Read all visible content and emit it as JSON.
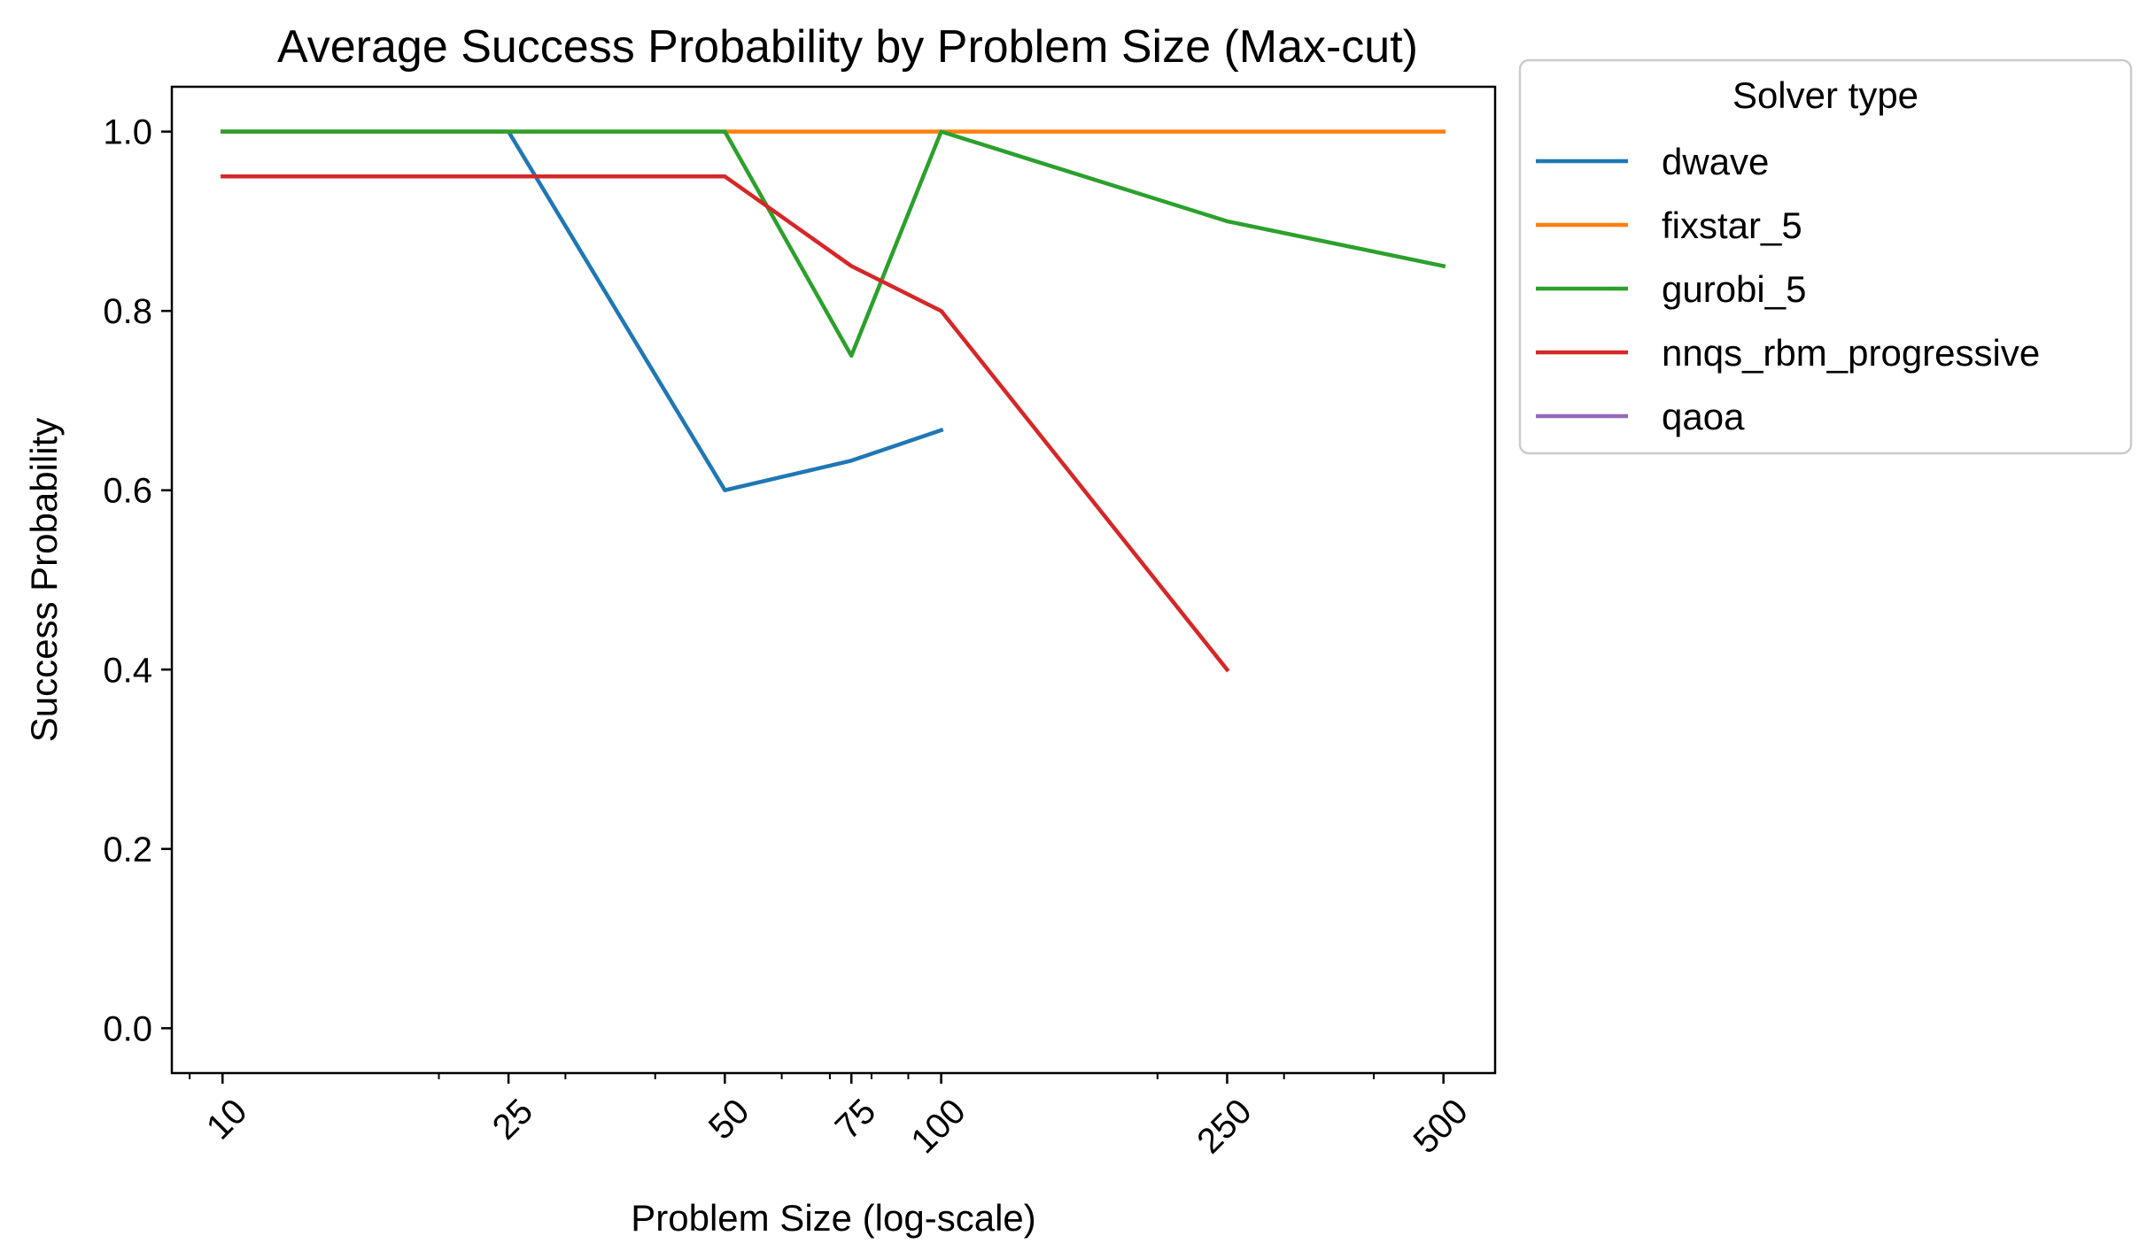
{
  "chart_data": {
    "type": "line",
    "title": "Average Success Probability by Problem Size (Max-cut)",
    "xlabel": "Problem Size (log-scale)",
    "ylabel": "Success Probability",
    "xscale": "log",
    "xlim": [
      8.5,
      590
    ],
    "ylim": [
      -0.05,
      1.05
    ],
    "xticks": [
      10,
      25,
      50,
      75,
      100,
      250,
      500
    ],
    "xtick_labels": [
      "10",
      "25",
      "50",
      "75",
      "100",
      "250",
      "500"
    ],
    "xtick_rotation": 45,
    "yticks": [
      0.0,
      0.2,
      0.4,
      0.6,
      0.8,
      1.0
    ],
    "ytick_labels": [
      "0.0",
      "0.2",
      "0.4",
      "0.6",
      "0.8",
      "1.0"
    ],
    "grid": false,
    "legend": {
      "title": "Solver type",
      "placement": "outside-right-top"
    },
    "series": [
      {
        "name": "dwave",
        "color": "#1f77b4",
        "x": [
          10,
          25,
          50,
          75,
          100
        ],
        "y": [
          1.0,
          1.0,
          0.6,
          0.633,
          0.667
        ]
      },
      {
        "name": "fixstar_5",
        "color": "#ff7f0e",
        "x": [
          10,
          25,
          50,
          75,
          100,
          250,
          500
        ],
        "y": [
          1.0,
          1.0,
          1.0,
          1.0,
          1.0,
          1.0,
          1.0
        ]
      },
      {
        "name": "gurobi_5",
        "color": "#2ca02c",
        "x": [
          10,
          25,
          50,
          75,
          100,
          250,
          500
        ],
        "y": [
          1.0,
          1.0,
          1.0,
          0.75,
          1.0,
          0.9,
          0.85
        ]
      },
      {
        "name": "nnqs_rbm_progressive",
        "color": "#d62728",
        "x": [
          10,
          25,
          50,
          75,
          100,
          250
        ],
        "y": [
          0.95,
          0.95,
          0.95,
          0.85,
          0.8,
          0.4
        ]
      },
      {
        "name": "qaoa",
        "color": "#9467bd",
        "x": [],
        "y": []
      }
    ]
  }
}
